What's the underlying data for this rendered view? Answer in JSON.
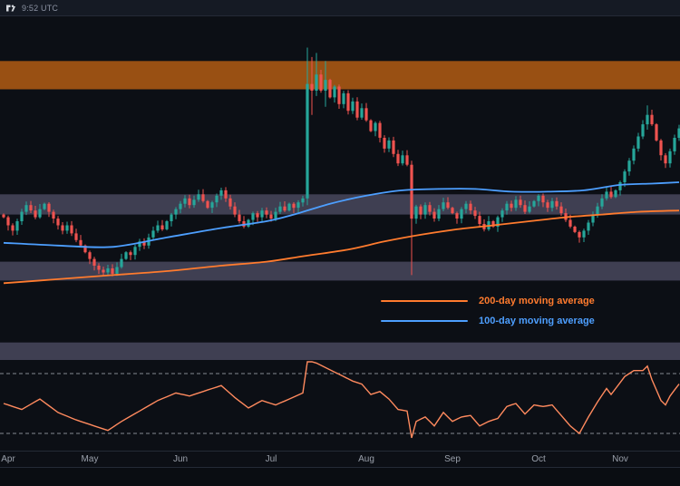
{
  "topbar": {
    "timestamp": "9:52 UTC",
    "logo": "tradingview-icon"
  },
  "legend": {
    "ma200_label": "200-day moving average",
    "ma100_label": "100-day moving average"
  },
  "colors": {
    "background": "#0c0f15",
    "topbar_bg": "#151a24",
    "bottombar_bg": "#0a0d12",
    "divider": "#242a36",
    "up": "#26a69a",
    "down": "#ef5350",
    "ma200": "#ff7b2e",
    "ma100": "#4d9fff",
    "rsi": "#ff8a5e",
    "axis_text": "#9aa0ab",
    "level_line": "#b8bcc6",
    "watermark_text": "#8b92a2"
  },
  "chart_data": {
    "type": "candlestick",
    "timeframe": "daily",
    "x_axis": {
      "labels": [
        "Apr",
        "May",
        "Jun",
        "Jul",
        "Aug",
        "Sep",
        "Oct",
        "Nov"
      ],
      "label_indices": [
        1,
        19,
        39,
        59,
        80,
        99,
        118,
        136
      ]
    },
    "price_panel": {
      "ylim": [
        1.3,
        3.65
      ],
      "zones": [
        {
          "name": "upper-resistance-zone",
          "from": 3.31,
          "to": 3.52,
          "color": "#b35c13",
          "opacity": 0.85
        },
        {
          "name": "mid-resistance-zone",
          "from": 2.38,
          "to": 2.53,
          "color": "#8d87ae",
          "opacity": 0.4
        },
        {
          "name": "support-zone",
          "from": 1.89,
          "to": 2.03,
          "color": "#8d87ae",
          "opacity": 0.4
        },
        {
          "name": "lower-support-zone",
          "from": 1.3,
          "to": 1.43,
          "color": "#8d87ae",
          "opacity": 0.4
        }
      ],
      "first_open": 2.38,
      "closes": [
        2.36,
        2.3,
        2.26,
        2.33,
        2.4,
        2.45,
        2.41,
        2.36,
        2.42,
        2.46,
        2.4,
        2.35,
        2.3,
        2.26,
        2.3,
        2.24,
        2.19,
        2.15,
        2.1,
        2.05,
        2.0,
        1.97,
        1.95,
        1.98,
        1.94,
        1.99,
        2.05,
        2.1,
        2.08,
        2.14,
        2.18,
        2.15,
        2.21,
        2.26,
        2.3,
        2.27,
        2.33,
        2.38,
        2.42,
        2.46,
        2.5,
        2.45,
        2.49,
        2.53,
        2.48,
        2.43,
        2.47,
        2.52,
        2.56,
        2.5,
        2.44,
        2.38,
        2.33,
        2.29,
        2.34,
        2.39,
        2.36,
        2.41,
        2.38,
        2.35,
        2.4,
        2.44,
        2.41,
        2.46,
        2.43,
        2.47,
        2.5,
        3.35,
        3.3,
        3.42,
        3.3,
        3.38,
        3.25,
        3.33,
        3.2,
        3.28,
        3.15,
        3.22,
        3.1,
        3.17,
        3.08,
        3.0,
        3.06,
        2.95,
        2.87,
        2.93,
        2.83,
        2.76,
        2.82,
        2.75,
        2.35,
        2.44,
        2.38,
        2.45,
        2.4,
        2.35,
        2.42,
        2.47,
        2.43,
        2.39,
        2.35,
        2.42,
        2.46,
        2.41,
        2.37,
        2.31,
        2.27,
        2.33,
        2.29,
        2.36,
        2.41,
        2.46,
        2.43,
        2.49,
        2.45,
        2.4,
        2.44,
        2.48,
        2.52,
        2.47,
        2.43,
        2.48,
        2.44,
        2.39,
        2.34,
        2.29,
        2.25,
        2.21,
        2.26,
        2.32,
        2.38,
        2.44,
        2.5,
        2.55,
        2.51,
        2.56,
        2.62,
        2.7,
        2.78,
        2.87,
        2.96,
        3.05,
        3.12,
        3.05,
        2.93,
        2.82,
        2.76,
        2.85,
        2.95,
        3.02
      ],
      "special_candles": {
        "67": [
          2.5,
          3.62,
          2.45,
          3.35
        ],
        "68": [
          3.35,
          3.55,
          3.12,
          3.3
        ],
        "69": [
          3.3,
          3.58,
          3.26,
          3.42
        ],
        "71": [
          3.3,
          3.52,
          3.18,
          3.38
        ],
        "90": [
          2.75,
          2.78,
          1.93,
          2.35
        ],
        "142": [
          3.05,
          3.19,
          3.01,
          3.12
        ]
      },
      "ma200": [
        [
          0,
          1.87
        ],
        [
          12,
          1.9
        ],
        [
          24,
          1.93
        ],
        [
          36,
          1.96
        ],
        [
          48,
          2.0
        ],
        [
          58,
          2.03
        ],
        [
          66,
          2.07
        ],
        [
          76,
          2.12
        ],
        [
          84,
          2.18
        ],
        [
          92,
          2.23
        ],
        [
          100,
          2.27
        ],
        [
          108,
          2.3
        ],
        [
          116,
          2.33
        ],
        [
          124,
          2.36
        ],
        [
          132,
          2.38
        ],
        [
          140,
          2.4
        ],
        [
          149,
          2.41
        ]
      ],
      "ma100": [
        [
          0,
          2.17
        ],
        [
          12,
          2.15
        ],
        [
          24,
          2.14
        ],
        [
          36,
          2.21
        ],
        [
          48,
          2.28
        ],
        [
          58,
          2.33
        ],
        [
          64,
          2.38
        ],
        [
          72,
          2.46
        ],
        [
          80,
          2.52
        ],
        [
          88,
          2.56
        ],
        [
          96,
          2.57
        ],
        [
          104,
          2.57
        ],
        [
          112,
          2.55
        ],
        [
          120,
          2.55
        ],
        [
          128,
          2.56
        ],
        [
          136,
          2.6
        ],
        [
          143,
          2.61
        ],
        [
          149,
          2.62
        ]
      ]
    },
    "rsi_panel": {
      "levels": [
        70,
        30
      ],
      "points": [
        [
          0,
          50
        ],
        [
          4,
          46
        ],
        [
          8,
          53
        ],
        [
          12,
          44
        ],
        [
          16,
          39
        ],
        [
          20,
          35
        ],
        [
          23,
          32
        ],
        [
          26,
          38
        ],
        [
          30,
          45
        ],
        [
          34,
          52
        ],
        [
          38,
          57
        ],
        [
          41,
          55
        ],
        [
          44,
          58
        ],
        [
          48,
          62
        ],
        [
          51,
          54
        ],
        [
          54,
          47
        ],
        [
          57,
          52
        ],
        [
          60,
          49
        ],
        [
          63,
          53
        ],
        [
          66,
          57
        ],
        [
          67,
          80
        ],
        [
          69,
          77
        ],
        [
          71,
          74
        ],
        [
          73,
          71
        ],
        [
          75,
          68
        ],
        [
          77,
          65
        ],
        [
          79,
          63
        ],
        [
          81,
          56
        ],
        [
          83,
          58
        ],
        [
          85,
          53
        ],
        [
          87,
          46
        ],
        [
          89,
          45
        ],
        [
          90,
          27
        ],
        [
          91,
          38
        ],
        [
          93,
          41
        ],
        [
          95,
          35
        ],
        [
          97,
          44
        ],
        [
          99,
          38
        ],
        [
          101,
          41
        ],
        [
          103,
          42
        ],
        [
          105,
          35
        ],
        [
          107,
          38
        ],
        [
          109,
          40
        ],
        [
          111,
          48
        ],
        [
          113,
          50
        ],
        [
          115,
          43
        ],
        [
          117,
          49
        ],
        [
          119,
          48
        ],
        [
          121,
          49
        ],
        [
          123,
          42
        ],
        [
          125,
          35
        ],
        [
          127,
          30
        ],
        [
          129,
          41
        ],
        [
          131,
          51
        ],
        [
          133,
          60
        ],
        [
          134,
          56
        ],
        [
          135,
          60
        ],
        [
          137,
          68
        ],
        [
          139,
          72
        ],
        [
          141,
          72
        ],
        [
          142,
          75
        ],
        [
          143,
          66
        ],
        [
          145,
          52
        ],
        [
          146,
          49
        ],
        [
          147,
          55
        ],
        [
          149,
          63
        ]
      ]
    }
  }
}
